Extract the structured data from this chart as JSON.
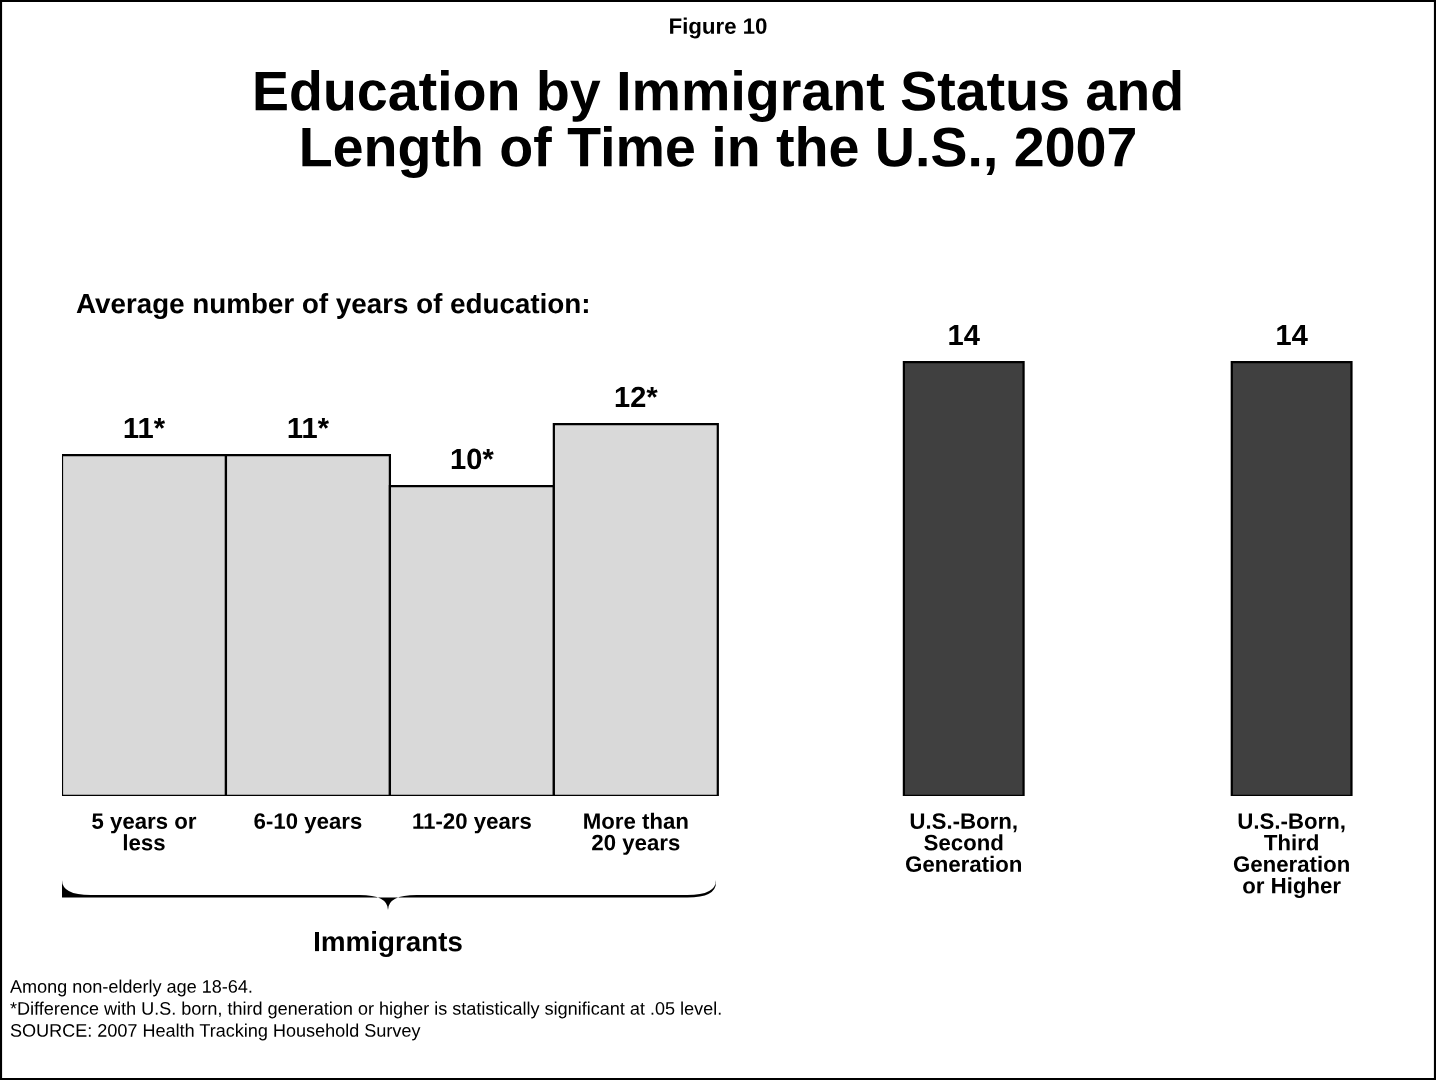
{
  "chart_data": {
    "type": "bar",
    "title": "Education by Immigrant Status and\nLength of Time in the U.S., 2007",
    "subtitle": "Figure 10",
    "ylabel": "Average number of years of education:",
    "categories": [
      "5 years or\nless",
      "6-10 years",
      "11-20 years",
      "More than\n20 years",
      null,
      "U.S.-Born,\nSecond\nGeneration",
      null,
      "U.S.-Born,\nThird\nGeneration\nor Higher"
    ],
    "values": [
      11,
      11,
      10,
      12,
      null,
      14,
      null,
      14
    ],
    "colors": [
      "#d9d9d9",
      "#d9d9d9",
      "#d9d9d9",
      "#d9d9d9",
      null,
      "#404040",
      null,
      "#404040"
    ],
    "value_labels": [
      "11*",
      "11*",
      "10*",
      "12*",
      null,
      "14",
      null,
      "14"
    ],
    "annotations": [
      "Immigrants",
      "Among non-elderly age 18-64.",
      "*Difference with U.S. born, third generation or higher is statistically significant at .05 level.",
      "SOURCE: 2007 Health Tracking Household Survey"
    ],
    "grid": false,
    "legend": false,
    "tick_labels": "x"
  }
}
